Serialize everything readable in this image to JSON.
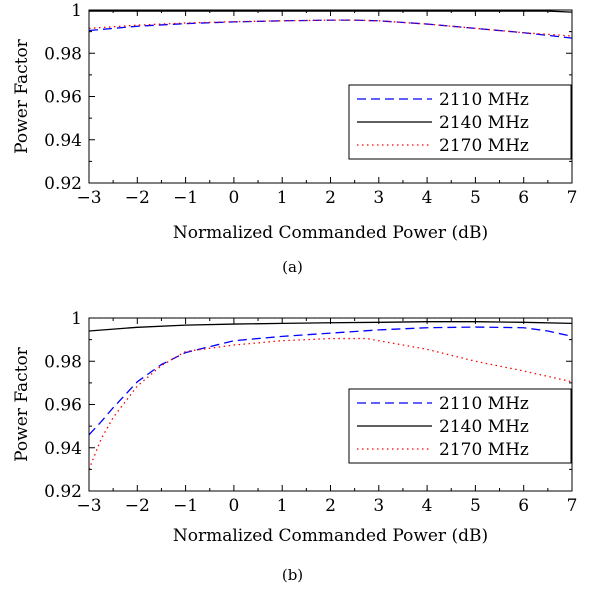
{
  "chart_data": [
    {
      "type": "line",
      "caption": "(a)",
      "xlabel": "Normalized Commanded Power (dB)",
      "ylabel": "Power Factor",
      "xlim": [
        -3,
        7
      ],
      "ylim": [
        0.92,
        1.0
      ],
      "xticks": [
        -3,
        -2,
        -1,
        0,
        1,
        2,
        3,
        4,
        5,
        6,
        7
      ],
      "xtick_labels": [
        "−3",
        "−2",
        "−1",
        "0",
        "1",
        "2",
        "3",
        "4",
        "5",
        "6",
        "7"
      ],
      "yticks": [
        0.92,
        0.94,
        0.96,
        0.98,
        1.0
      ],
      "ytick_labels": [
        "0.92",
        "0.94",
        "0.96",
        "0.98",
        "1"
      ],
      "grid": false,
      "legend_position": "lower-right",
      "series": [
        {
          "name": "2110 MHz",
          "color": "#0000ff",
          "dash": "dashed",
          "x": [
            -3,
            -2,
            -1,
            0,
            1,
            2,
            2.5,
            3,
            4,
            5,
            6,
            7
          ],
          "y": [
            0.9905,
            0.9925,
            0.9937,
            0.9945,
            0.995,
            0.9953,
            0.9953,
            0.995,
            0.9935,
            0.9915,
            0.9895,
            0.987
          ]
        },
        {
          "name": "2140 MHz",
          "color": "#000000",
          "dash": "solid",
          "x": [
            -3,
            -2,
            -1,
            0,
            1,
            2,
            3,
            4,
            5,
            6,
            6.5,
            7
          ],
          "y": [
            0.9995,
            0.9995,
            0.9995,
            0.9995,
            0.9995,
            0.9995,
            0.9995,
            0.9995,
            0.9995,
            0.9995,
            0.9995,
            0.999
          ]
        },
        {
          "name": "2170 MHz",
          "color": "#ff0000",
          "dash": "dotted",
          "x": [
            -3,
            -2,
            -1,
            0,
            1,
            2,
            2.5,
            3,
            4,
            5,
            6,
            7
          ],
          "y": [
            0.9915,
            0.993,
            0.994,
            0.9946,
            0.995,
            0.9953,
            0.9953,
            0.995,
            0.9935,
            0.9915,
            0.9895,
            0.988
          ]
        }
      ]
    },
    {
      "type": "line",
      "caption": "(b)",
      "xlabel": "Normalized Commanded Power (dB)",
      "ylabel": "Power Factor",
      "xlim": [
        -3,
        7
      ],
      "ylim": [
        0.92,
        1.0
      ],
      "xticks": [
        -3,
        -2,
        -1,
        0,
        1,
        2,
        3,
        4,
        5,
        6,
        7
      ],
      "xtick_labels": [
        "−3",
        "−2",
        "−1",
        "0",
        "1",
        "2",
        "3",
        "4",
        "5",
        "6",
        "7"
      ],
      "yticks": [
        0.92,
        0.94,
        0.96,
        0.98,
        1.0
      ],
      "ytick_labels": [
        "0.92",
        "0.94",
        "0.96",
        "0.98",
        "1"
      ],
      "grid": false,
      "legend_position": "lower-right",
      "series": [
        {
          "name": "2110 MHz",
          "color": "#0000ff",
          "dash": "dashed",
          "x": [
            -3,
            -2.75,
            -2.5,
            -2,
            -1.5,
            -1,
            0,
            1,
            2,
            3,
            4,
            5,
            6,
            6.5,
            7
          ],
          "y": [
            0.946,
            0.952,
            0.9585,
            0.9705,
            0.9785,
            0.984,
            0.9895,
            0.9915,
            0.993,
            0.9945,
            0.9955,
            0.9958,
            0.9955,
            0.994,
            0.9915
          ]
        },
        {
          "name": "2140 MHz",
          "color": "#000000",
          "dash": "solid",
          "x": [
            -3,
            -2,
            -1,
            0,
            1,
            2,
            3,
            4,
            5,
            6,
            7
          ],
          "y": [
            0.994,
            0.9957,
            0.9967,
            0.9972,
            0.9975,
            0.9978,
            0.998,
            0.9983,
            0.9983,
            0.998,
            0.9975
          ]
        },
        {
          "name": "2170 MHz",
          "color": "#ff0000",
          "dash": "dotted",
          "x": [
            -3,
            -2.75,
            -2.5,
            -2,
            -1.5,
            -1,
            0,
            1,
            2,
            2.75,
            3,
            4,
            5,
            6,
            7
          ],
          "y": [
            0.93,
            0.944,
            0.954,
            0.9685,
            0.978,
            0.9845,
            0.9875,
            0.9895,
            0.9905,
            0.9905,
            0.9895,
            0.9855,
            0.98,
            0.9755,
            0.9705
          ]
        },
        {
          "name": "",
          "color": "#b0b0b0",
          "dash": "dotted",
          "x": [
            -3,
            7
          ],
          "y": [
            1.0,
            1.0
          ]
        }
      ]
    }
  ]
}
